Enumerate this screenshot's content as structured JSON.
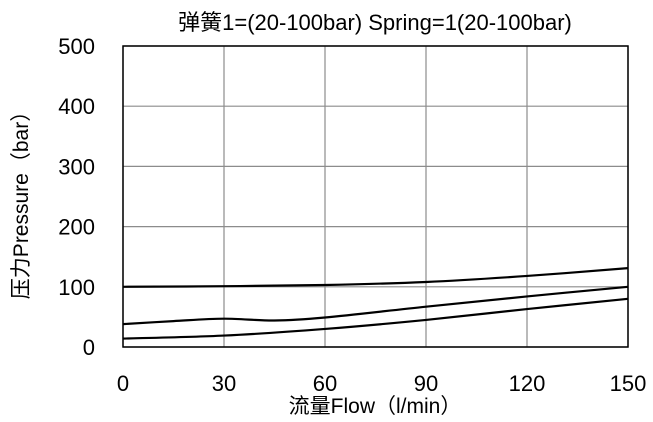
{
  "chart_data": {
    "type": "line",
    "title": "弹簧1=(20-100bar)  Spring=1(20-100bar)",
    "xlabel": "流量Flow（l/min）",
    "ylabel": "压力Pressure（bar）",
    "xlim": [
      0,
      150
    ],
    "ylim": [
      0,
      500
    ],
    "xticks": [
      0,
      30,
      60,
      90,
      120,
      150
    ],
    "yticks": [
      0,
      100,
      200,
      300,
      400,
      500
    ],
    "grid": true,
    "series": [
      {
        "x": [
          0,
          30,
          60,
          90,
          120,
          150
        ],
        "y": [
          100,
          101,
          103,
          108,
          118,
          131
        ]
      },
      {
        "x": [
          0,
          15,
          30,
          45,
          60,
          90,
          120,
          150
        ],
        "y": [
          38,
          43,
          47,
          44,
          49,
          67,
          84,
          100
        ]
      },
      {
        "x": [
          0,
          30,
          60,
          90,
          120,
          150
        ],
        "y": [
          14,
          19,
          30,
          45,
          63,
          80
        ]
      }
    ]
  }
}
